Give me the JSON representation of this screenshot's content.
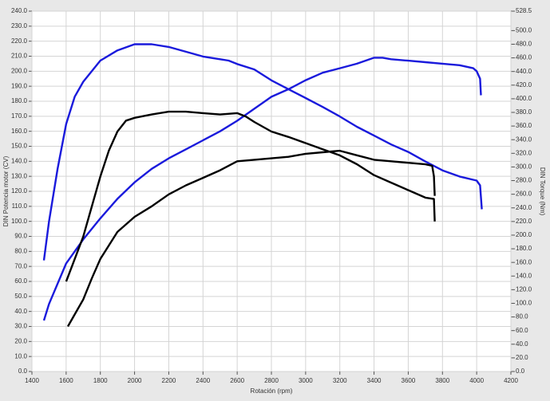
{
  "chart_data": {
    "type": "line",
    "x_label": "Rotación (rpm)",
    "y_label": "DIN Potencia motor (CV)",
    "y2_label": "DIN Torque (Nm)",
    "xlim": [
      1400,
      4200
    ],
    "xticks": [
      1400,
      1600,
      1800,
      2000,
      2200,
      2400,
      2600,
      2800,
      3000,
      3200,
      3400,
      3600,
      3800,
      4000,
      4200
    ],
    "ylim": [
      0,
      240
    ],
    "yticks": [
      {
        "value": 0,
        "label": "0.0"
      },
      {
        "value": 10,
        "label": "10.0"
      },
      {
        "value": 20,
        "label": "20.0"
      },
      {
        "value": 30,
        "label": "30.0"
      },
      {
        "value": 40,
        "label": "40.0"
      },
      {
        "value": 50,
        "label": "50.0"
      },
      {
        "value": 60,
        "label": "60.0"
      },
      {
        "value": 70,
        "label": "70.0"
      },
      {
        "value": 80,
        "label": "80.0"
      },
      {
        "value": 90,
        "label": "90.0"
      },
      {
        "value": 100,
        "label": "100.0"
      },
      {
        "value": 110,
        "label": "110.0"
      },
      {
        "value": 120,
        "label": "120.0"
      },
      {
        "value": 130,
        "label": "130.0"
      },
      {
        "value": 140,
        "label": "140.0"
      },
      {
        "value": 150,
        "label": "150.0"
      },
      {
        "value": 160,
        "label": "160.0"
      },
      {
        "value": 170,
        "label": "170.0"
      },
      {
        "value": 180,
        "label": "180.0"
      },
      {
        "value": 190,
        "label": "190.0"
      },
      {
        "value": 200,
        "label": "200.0"
      },
      {
        "value": 210,
        "label": "210.0"
      },
      {
        "value": 220,
        "label": "220.0"
      },
      {
        "value": 230,
        "label": "230.0"
      },
      {
        "value": 240,
        "label": "240.0"
      }
    ],
    "y2lim": [
      0,
      528.5
    ],
    "y2ticks": [
      {
        "value": 0,
        "label": "0.0"
      },
      {
        "value": 20,
        "label": "20.0"
      },
      {
        "value": 40,
        "label": "40.0"
      },
      {
        "value": 60,
        "label": "60.0"
      },
      {
        "value": 80,
        "label": "80.0"
      },
      {
        "value": 100,
        "label": "100.0"
      },
      {
        "value": 120,
        "label": "120.0"
      },
      {
        "value": 140,
        "label": "140.0"
      },
      {
        "value": 160,
        "label": "160.0"
      },
      {
        "value": 180,
        "label": "180.0"
      },
      {
        "value": 200,
        "label": "200.0"
      },
      {
        "value": 220,
        "label": "220.0"
      },
      {
        "value": 240,
        "label": "240.0"
      },
      {
        "value": 260,
        "label": "260.0"
      },
      {
        "value": 280,
        "label": "280.0"
      },
      {
        "value": 300,
        "label": "300.0"
      },
      {
        "value": 320,
        "label": "320.0"
      },
      {
        "value": 340,
        "label": "340.0"
      },
      {
        "value": 360,
        "label": "360.0"
      },
      {
        "value": 380,
        "label": "380.0"
      },
      {
        "value": 400,
        "label": "400.0"
      },
      {
        "value": 420,
        "label": "420.0"
      },
      {
        "value": 440,
        "label": "440.0"
      },
      {
        "value": 460,
        "label": "460.0"
      },
      {
        "value": 480,
        "label": "480.0"
      },
      {
        "value": 500,
        "label": "500.0"
      },
      {
        "value": 528.5,
        "label": "528.5"
      }
    ],
    "grid": true,
    "series": [
      {
        "color": "#1a1adc",
        "axis": "y2",
        "x": [
          1470,
          1500,
          1550,
          1600,
          1650,
          1700,
          1800,
          1900,
          2000,
          2100,
          2200,
          2300,
          2400,
          2500,
          2550,
          2600,
          2700,
          2800,
          2900,
          3000,
          3100,
          3200,
          3300,
          3400,
          3500,
          3600,
          3700,
          3800,
          3900,
          4000,
          4020,
          4030
        ],
        "values": [
          163,
          220,
          297,
          363,
          403,
          425,
          456,
          471,
          480,
          480,
          476,
          469,
          462,
          458,
          456,
          451,
          443,
          427,
          414,
          401,
          388,
          374,
          359,
          346,
          333,
          322,
          308,
          295,
          286,
          280,
          273,
          238
        ]
      },
      {
        "color": "#1a1adc",
        "x": [
          1470,
          1500,
          1600,
          1700,
          1800,
          1900,
          2000,
          2100,
          2200,
          2300,
          2400,
          2500,
          2600,
          2700,
          2800,
          2900,
          3000,
          3100,
          3200,
          3300,
          3400,
          3450,
          3500,
          3600,
          3700,
          3800,
          3900,
          3980,
          4000,
          4020,
          4025
        ],
        "values": [
          34,
          45,
          72,
          88,
          102,
          115,
          126,
          135,
          142,
          148,
          154,
          160,
          167,
          175,
          183,
          188,
          194,
          199,
          202,
          205,
          209,
          209,
          208,
          207,
          206,
          205,
          204,
          202,
          200,
          195,
          184
        ]
      },
      {
        "color": "#000000",
        "axis": "y2",
        "x": [
          1600,
          1650,
          1700,
          1750,
          1800,
          1850,
          1900,
          1950,
          2000,
          2100,
          2200,
          2300,
          2400,
          2500,
          2600,
          2650,
          2700,
          2800,
          2900,
          3000,
          3100,
          3200,
          3300,
          3400,
          3500,
          3600,
          3700,
          3750,
          3755
        ],
        "values": [
          132,
          165,
          198,
          242,
          286,
          324,
          352,
          368,
          372,
          377,
          381,
          381,
          379,
          377,
          379,
          374,
          366,
          352,
          344,
          335,
          326,
          317,
          304,
          288,
          277,
          266,
          255,
          253,
          220
        ]
      },
      {
        "color": "#000000",
        "x": [
          1610,
          1650,
          1700,
          1750,
          1800,
          1900,
          2000,
          2100,
          2200,
          2300,
          2400,
          2500,
          2600,
          2700,
          2800,
          2900,
          3000,
          3100,
          3200,
          3300,
          3400,
          3500,
          3600,
          3700,
          3740,
          3750,
          3755
        ],
        "values": [
          30,
          38,
          48,
          62,
          75,
          93,
          103,
          110,
          118,
          124,
          129,
          134,
          140,
          141,
          142,
          143,
          145,
          146,
          147,
          144,
          141,
          140,
          139,
          138,
          137,
          130,
          117
        ]
      }
    ]
  }
}
